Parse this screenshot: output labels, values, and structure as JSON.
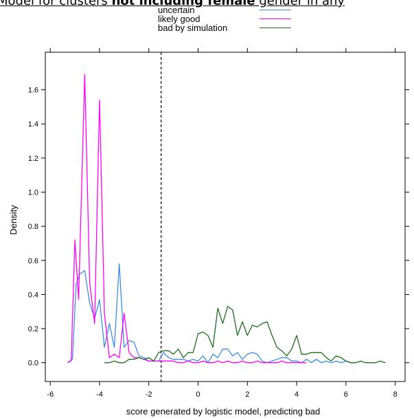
{
  "banner": {
    "prefix": "Model for clusters ",
    "bold": "not including female",
    "suffix": " gender in any"
  },
  "colors": {
    "uncertain": "#3c8ce6",
    "likely_good": "#ff00ff",
    "bad_by_simulation": "#1e6e1e",
    "axis": "#000000"
  },
  "chart_data": {
    "type": "line",
    "title": "",
    "xlabel": "score generated by logistic model, predicting bad",
    "ylabel": "Density",
    "xlim": [
      -6.2,
      8.4
    ],
    "ylim": [
      -0.11,
      1.82
    ],
    "xticks": [
      -6,
      -4,
      -2,
      0,
      2,
      4,
      6,
      8
    ],
    "yticks": [
      0.0,
      0.2,
      0.4,
      0.6,
      0.8,
      1.0,
      1.2,
      1.4,
      1.6
    ],
    "xtick_labels": [
      "-6",
      "-4",
      "-2",
      "0",
      "2",
      "4",
      "6",
      "8"
    ],
    "ytick_labels": [
      "0.0",
      "0.2",
      "0.4",
      "0.6",
      "0.8",
      "1.0",
      "1.2",
      "1.4",
      "1.6"
    ],
    "vline": {
      "x": -1.5,
      "style": "dashed"
    },
    "grid": false,
    "legend_position": "top-center",
    "series": [
      {
        "name": "uncertain",
        "color_key": "uncertain",
        "x": [
          -5.3,
          -5.1,
          -4.95,
          -4.8,
          -4.6,
          -4.4,
          -4.2,
          -4.0,
          -3.8,
          -3.6,
          -3.4,
          -3.2,
          -3.0,
          -2.8,
          -2.6,
          -2.4,
          -2.2,
          -2.0,
          -1.8,
          -1.6,
          -1.4,
          -1.2,
          -1.0,
          -0.8,
          -0.6,
          -0.4,
          -0.2,
          0.0,
          0.2,
          0.4,
          0.6,
          0.8,
          1.0,
          1.2,
          1.4,
          1.6,
          1.8,
          2.0,
          2.2,
          2.4,
          2.6,
          2.8,
          3.0,
          3.2,
          3.4,
          3.6,
          3.8,
          4.0,
          4.2,
          4.4,
          4.6,
          4.8,
          5.0,
          5.2,
          5.4,
          5.6,
          5.8,
          6.0,
          6.2,
          6.4
        ],
        "y": [
          0.0,
          0.02,
          0.46,
          0.52,
          0.54,
          0.35,
          0.26,
          0.37,
          0.09,
          0.23,
          0.09,
          0.58,
          0.09,
          0.13,
          0.12,
          0.04,
          0.03,
          0.01,
          0.01,
          0.01,
          0.06,
          0.03,
          0.02,
          0.02,
          0.02,
          0.01,
          0.02,
          0.01,
          0.04,
          0.0,
          0.05,
          0.03,
          0.08,
          0.08,
          0.04,
          0.06,
          0.02,
          0.05,
          0.06,
          0.05,
          0.01,
          0.0,
          0.01,
          0.02,
          0.03,
          0.03,
          0.01,
          0.01,
          0.0,
          0.02,
          0.0,
          0.02,
          0.0,
          0.01,
          0.0,
          0.01,
          0.0,
          0.01,
          0.0,
          0.0
        ]
      },
      {
        "name": "likely good",
        "color_key": "likely_good",
        "x": [
          -5.3,
          -5.15,
          -5.0,
          -4.85,
          -4.6,
          -4.4,
          -4.2,
          -4.0,
          -3.8,
          -3.6,
          -3.4,
          -3.2,
          -3.0,
          -2.8,
          -2.6,
          -2.4,
          -2.2,
          -2.0,
          -1.8,
          -1.6,
          -1.4,
          -1.2,
          -1.0,
          -0.8,
          -0.6,
          -0.4,
          -0.2,
          0.0,
          0.2,
          0.4,
          0.6,
          0.8,
          1.0,
          1.2,
          1.4,
          1.6,
          1.8,
          2.0,
          2.2,
          2.4,
          2.6,
          2.8,
          3.0,
          3.2,
          3.4,
          3.6,
          3.8,
          4.0,
          4.2,
          4.4
        ],
        "y": [
          0.0,
          0.01,
          0.72,
          0.37,
          1.69,
          0.47,
          0.23,
          1.54,
          0.29,
          0.03,
          0.05,
          0.03,
          0.29,
          0.06,
          0.03,
          0.03,
          0.02,
          0.01,
          0.01,
          0.01,
          0.01,
          0.01,
          0.01,
          0.0,
          0.0,
          0.01,
          0.0,
          0.0,
          0.01,
          0.0,
          0.0,
          0.01,
          0.0,
          0.01,
          0.0,
          0.0,
          0.01,
          0.0,
          0.0,
          0.01,
          0.0,
          0.0,
          0.0,
          0.0,
          0.01,
          0.0,
          0.0,
          0.0,
          0.0,
          0.0
        ]
      },
      {
        "name": "bad by simulation",
        "color_key": "bad_by_simulation",
        "x": [
          -3.8,
          -3.6,
          -3.4,
          -3.2,
          -3.0,
          -2.8,
          -2.6,
          -2.4,
          -2.2,
          -2.0,
          -1.8,
          -1.6,
          -1.4,
          -1.2,
          -1.0,
          -0.8,
          -0.6,
          -0.4,
          -0.2,
          0.0,
          0.2,
          0.4,
          0.6,
          0.8,
          1.0,
          1.2,
          1.4,
          1.6,
          1.8,
          2.0,
          2.2,
          2.4,
          2.6,
          2.8,
          3.0,
          3.2,
          3.4,
          3.6,
          3.8,
          4.0,
          4.2,
          4.4,
          4.6,
          4.8,
          5.0,
          5.2,
          5.4,
          5.6,
          5.8,
          6.0,
          6.2,
          6.4,
          6.6,
          6.8,
          7.0,
          7.2,
          7.4,
          7.6
        ],
        "y": [
          0.0,
          0.0,
          0.01,
          0.0,
          0.0,
          0.02,
          0.02,
          0.03,
          0.02,
          0.03,
          0.01,
          0.06,
          0.07,
          0.07,
          0.05,
          0.08,
          0.03,
          0.06,
          0.06,
          0.17,
          0.18,
          0.16,
          0.09,
          0.32,
          0.23,
          0.33,
          0.31,
          0.16,
          0.24,
          0.16,
          0.22,
          0.21,
          0.23,
          0.24,
          0.16,
          0.09,
          0.07,
          0.04,
          0.08,
          0.16,
          0.05,
          0.05,
          0.06,
          0.06,
          0.06,
          0.03,
          0.01,
          0.04,
          0.03,
          0.01,
          0.0,
          0.0,
          0.01,
          0.0,
          0.0,
          0.0,
          0.01,
          0.0
        ]
      }
    ]
  }
}
